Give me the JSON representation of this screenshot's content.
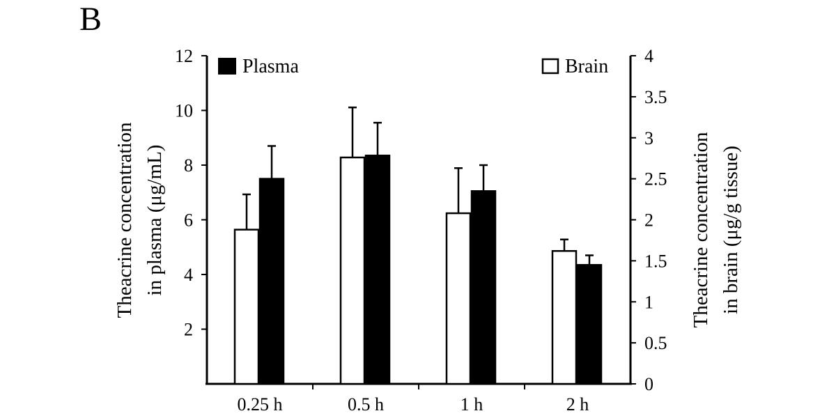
{
  "panel_label": "B",
  "chart_data": {
    "type": "bar",
    "categories": [
      "0.25 h",
      "0.5 h",
      "1 h",
      "2 h"
    ],
    "series": [
      {
        "name": "Brain",
        "axis": "right",
        "fill": "#ffffff",
        "values": [
          1.88,
          2.76,
          2.08,
          1.62
        ],
        "errors": [
          0.43,
          0.61,
          0.55,
          0.14
        ]
      },
      {
        "name": "Plasma",
        "axis": "left",
        "fill": "#000000",
        "values": [
          7.5,
          8.35,
          7.05,
          4.35
        ],
        "errors": [
          1.2,
          1.2,
          0.95,
          0.35
        ]
      }
    ],
    "left_axis": {
      "label_line1": "Theacrine concentration",
      "label_line2": "in plasma (μg/mL)",
      "ylim": [
        0,
        12
      ],
      "ticks": [
        2,
        4,
        6,
        8,
        10,
        12
      ],
      "tick_labels": [
        "2",
        "4",
        "6",
        "8",
        "10",
        "12"
      ]
    },
    "right_axis": {
      "label_line1": "Theacrine concentration",
      "label_line2": "in brain (μg/g tissue)",
      "ylim": [
        0,
        4
      ],
      "ticks": [
        0,
        0.5,
        1,
        1.5,
        2,
        2.5,
        3,
        3.5,
        4
      ],
      "tick_labels": [
        "0",
        "0.5",
        "1",
        "1.5",
        "2",
        "2.5",
        "3",
        "3.5",
        "4"
      ]
    },
    "legend": [
      {
        "name": "Plasma",
        "placement": "top-left",
        "fill": "#000000"
      },
      {
        "name": "Brain",
        "placement": "top-right",
        "fill": "#ffffff"
      }
    ]
  }
}
